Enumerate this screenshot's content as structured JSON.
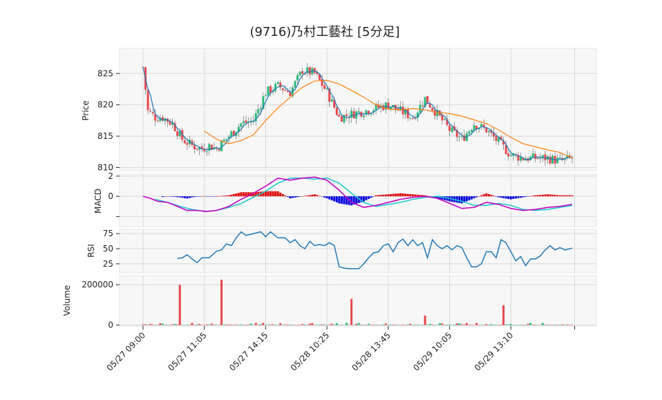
{
  "chart_data": {
    "type": "candlestick",
    "title": "(9716)乃村工藝社 [5分足]",
    "colors": {
      "up": "#2ab97a",
      "down": "#e8474c",
      "ma_short": "#1f77b4",
      "ma_long": "#ff7f0e",
      "macd_line": "#c400c4",
      "signal_line": "#1fc9c9",
      "hist_pos": "#e00000",
      "hist_neg": "#0000e0",
      "rsi": "#1f77b4",
      "vol_up": "#2ab97a",
      "vol_down": "#e8474c"
    },
    "x_ticks": [
      {
        "label": "05/27 09:00",
        "index": 0
      },
      {
        "label": "05/27 11:05",
        "index": 25
      },
      {
        "label": "05/27 14:15",
        "index": 50
      },
      {
        "label": "05/28 10:25",
        "index": 75
      },
      {
        "label": "05/28 13:45",
        "index": 100
      },
      {
        "label": "05/29 10:05",
        "index": 125
      },
      {
        "label": "05/29 13:10",
        "index": 150
      }
    ],
    "x_count": 176,
    "price": {
      "ylabel": "Price",
      "ylim": [
        809.5,
        829
      ],
      "ticks": [
        810,
        815,
        820,
        825
      ],
      "anchors": [
        [
          0,
          826
        ],
        [
          2,
          819
        ],
        [
          5,
          818
        ],
        [
          8,
          818
        ],
        [
          12,
          817
        ],
        [
          16,
          814.5
        ],
        [
          20,
          813.5
        ],
        [
          24,
          813
        ],
        [
          27,
          813.5
        ],
        [
          30,
          813
        ],
        [
          35,
          815
        ],
        [
          40,
          817
        ],
        [
          45,
          817.5
        ],
        [
          50,
          822
        ],
        [
          55,
          823
        ],
        [
          60,
          822
        ],
        [
          65,
          825.5
        ],
        [
          70,
          825
        ],
        [
          75,
          822
        ],
        [
          80,
          818
        ],
        [
          85,
          818.5
        ],
        [
          90,
          819
        ],
        [
          95,
          819.5
        ],
        [
          100,
          820
        ],
        [
          105,
          819
        ],
        [
          110,
          818
        ],
        [
          115,
          821
        ],
        [
          120,
          818.5
        ],
        [
          125,
          816
        ],
        [
          130,
          814.5
        ],
        [
          135,
          817
        ],
        [
          140,
          816
        ],
        [
          145,
          814
        ],
        [
          150,
          812
        ],
        [
          155,
          811.5
        ],
        [
          160,
          811.5
        ],
        [
          165,
          811.5
        ],
        [
          170,
          811
        ],
        [
          175,
          811.5
        ]
      ],
      "ma_long_anchors": [
        [
          25,
          815.8
        ],
        [
          30,
          814.5
        ],
        [
          35,
          813.8
        ],
        [
          40,
          814.3
        ],
        [
          45,
          815.2
        ],
        [
          50,
          817.5
        ],
        [
          55,
          819.5
        ],
        [
          60,
          821.2
        ],
        [
          65,
          822.8
        ],
        [
          70,
          823.8
        ],
        [
          75,
          823.9
        ],
        [
          80,
          823.3
        ],
        [
          85,
          822.3
        ],
        [
          90,
          821.2
        ],
        [
          95,
          820
        ],
        [
          100,
          819.3
        ],
        [
          105,
          819.2
        ],
        [
          110,
          819.4
        ],
        [
          115,
          819.2
        ],
        [
          120,
          818.8
        ],
        [
          125,
          818.6
        ],
        [
          130,
          818.2
        ],
        [
          135,
          817.6
        ],
        [
          140,
          817
        ],
        [
          145,
          816
        ],
        [
          150,
          814.8
        ],
        [
          155,
          813.8
        ],
        [
          160,
          813.3
        ],
        [
          165,
          812.8
        ],
        [
          170,
          812.4
        ],
        [
          175,
          811.5
        ]
      ]
    },
    "macd": {
      "ylabel": "MACD",
      "ylim": [
        -3,
        2.2
      ],
      "ticks": [
        -2,
        0,
        2
      ],
      "tick_labels": [
        "",
        "0",
        "2"
      ],
      "macd_anchors": [
        [
          0,
          0
        ],
        [
          3,
          -0.2
        ],
        [
          6,
          -0.5
        ],
        [
          10,
          -0.6
        ],
        [
          14,
          -1.0
        ],
        [
          18,
          -1.4
        ],
        [
          22,
          -1.4
        ],
        [
          26,
          -1.5
        ],
        [
          30,
          -1.4
        ],
        [
          35,
          -1.0
        ],
        [
          40,
          -0.3
        ],
        [
          45,
          0.3
        ],
        [
          50,
          1.0
        ],
        [
          55,
          1.8
        ],
        [
          60,
          1.6
        ],
        [
          65,
          1.8
        ],
        [
          70,
          1.9
        ],
        [
          75,
          1.6
        ],
        [
          80,
          0.6
        ],
        [
          85,
          -0.6
        ],
        [
          90,
          -1.1
        ],
        [
          95,
          -0.9
        ],
        [
          100,
          -0.6
        ],
        [
          105,
          -0.3
        ],
        [
          110,
          -0.1
        ],
        [
          115,
          0
        ],
        [
          120,
          -0.2
        ],
        [
          125,
          -0.7
        ],
        [
          130,
          -1.2
        ],
        [
          135,
          -1.1
        ],
        [
          140,
          -0.6
        ],
        [
          145,
          -0.8
        ],
        [
          150,
          -1.2
        ],
        [
          155,
          -1.4
        ],
        [
          160,
          -1.3
        ],
        [
          165,
          -1.1
        ],
        [
          170,
          -1.0
        ],
        [
          175,
          -0.8
        ]
      ],
      "signal_anchors": [
        [
          5,
          -0.3
        ],
        [
          10,
          -0.6
        ],
        [
          15,
          -1.0
        ],
        [
          20,
          -1.3
        ],
        [
          25,
          -1.5
        ],
        [
          30,
          -1.4
        ],
        [
          35,
          -1.1
        ],
        [
          40,
          -0.7
        ],
        [
          45,
          -0.1
        ],
        [
          50,
          0.5
        ],
        [
          55,
          1.3
        ],
        [
          60,
          1.8
        ],
        [
          65,
          1.8
        ],
        [
          70,
          1.7
        ],
        [
          75,
          1.8
        ],
        [
          80,
          1.3
        ],
        [
          85,
          0.3
        ],
        [
          90,
          -0.6
        ],
        [
          95,
          -1.0
        ],
        [
          100,
          -0.8
        ],
        [
          105,
          -0.6
        ],
        [
          110,
          -0.3
        ],
        [
          115,
          -0.1
        ],
        [
          120,
          0
        ],
        [
          125,
          -0.2
        ],
        [
          130,
          -0.5
        ],
        [
          135,
          -0.9
        ],
        [
          140,
          -0.9
        ],
        [
          145,
          -0.7
        ],
        [
          150,
          -0.9
        ],
        [
          155,
          -1.3
        ],
        [
          160,
          -1.4
        ],
        [
          165,
          -1.3
        ],
        [
          170,
          -1.1
        ],
        [
          175,
          -0.9
        ]
      ]
    },
    "rsi": {
      "ylabel": "RSI",
      "ylim": [
        10,
        82
      ],
      "ticks": [
        25,
        50,
        75
      ],
      "start": 14,
      "anchors": [
        [
          14,
          34
        ],
        [
          16,
          35
        ],
        [
          18,
          40
        ],
        [
          20,
          33
        ],
        [
          22,
          27
        ],
        [
          24,
          35
        ],
        [
          27,
          35
        ],
        [
          30,
          46
        ],
        [
          32,
          48
        ],
        [
          34,
          58
        ],
        [
          36,
          55
        ],
        [
          38,
          68
        ],
        [
          40,
          78
        ],
        [
          42,
          72
        ],
        [
          45,
          75
        ],
        [
          48,
          78
        ],
        [
          50,
          70
        ],
        [
          52,
          78
        ],
        [
          55,
          68
        ],
        [
          58,
          68
        ],
        [
          60,
          60
        ],
        [
          62,
          65
        ],
        [
          64,
          55
        ],
        [
          66,
          50
        ],
        [
          68,
          62
        ],
        [
          70,
          55
        ],
        [
          72,
          57
        ],
        [
          74,
          55
        ],
        [
          76,
          60
        ],
        [
          78,
          55
        ],
        [
          80,
          20
        ],
        [
          82,
          18
        ],
        [
          84,
          17
        ],
        [
          88,
          17
        ],
        [
          90,
          25
        ],
        [
          92,
          35
        ],
        [
          94,
          43
        ],
        [
          96,
          45
        ],
        [
          98,
          55
        ],
        [
          100,
          58
        ],
        [
          102,
          45
        ],
        [
          104,
          60
        ],
        [
          106,
          66
        ],
        [
          108,
          55
        ],
        [
          110,
          65
        ],
        [
          112,
          55
        ],
        [
          114,
          60
        ],
        [
          116,
          35
        ],
        [
          118,
          65
        ],
        [
          120,
          55
        ],
        [
          122,
          50
        ],
        [
          124,
          55
        ],
        [
          126,
          48
        ],
        [
          128,
          55
        ],
        [
          130,
          52
        ],
        [
          132,
          35
        ],
        [
          134,
          20
        ],
        [
          136,
          20
        ],
        [
          138,
          25
        ],
        [
          140,
          45
        ],
        [
          142,
          45
        ],
        [
          144,
          35
        ],
        [
          146,
          65
        ],
        [
          148,
          60
        ],
        [
          150,
          45
        ],
        [
          152,
          30
        ],
        [
          154,
          37
        ],
        [
          156,
          22
        ],
        [
          158,
          33
        ],
        [
          160,
          33
        ],
        [
          162,
          38
        ],
        [
          164,
          48
        ],
        [
          166,
          55
        ],
        [
          168,
          48
        ],
        [
          170,
          52
        ],
        [
          172,
          48
        ],
        [
          175,
          51
        ]
      ]
    },
    "volume": {
      "ylabel": "Volume",
      "ylim": [
        -5000,
        245000
      ],
      "ticks": [
        0,
        200000
      ],
      "tick_labels": [
        "0",
        "200000"
      ],
      "spikes": [
        [
          15,
          200000
        ],
        [
          32,
          225000
        ],
        [
          85,
          130000
        ],
        [
          115,
          47000
        ],
        [
          147,
          98000
        ]
      ]
    }
  }
}
